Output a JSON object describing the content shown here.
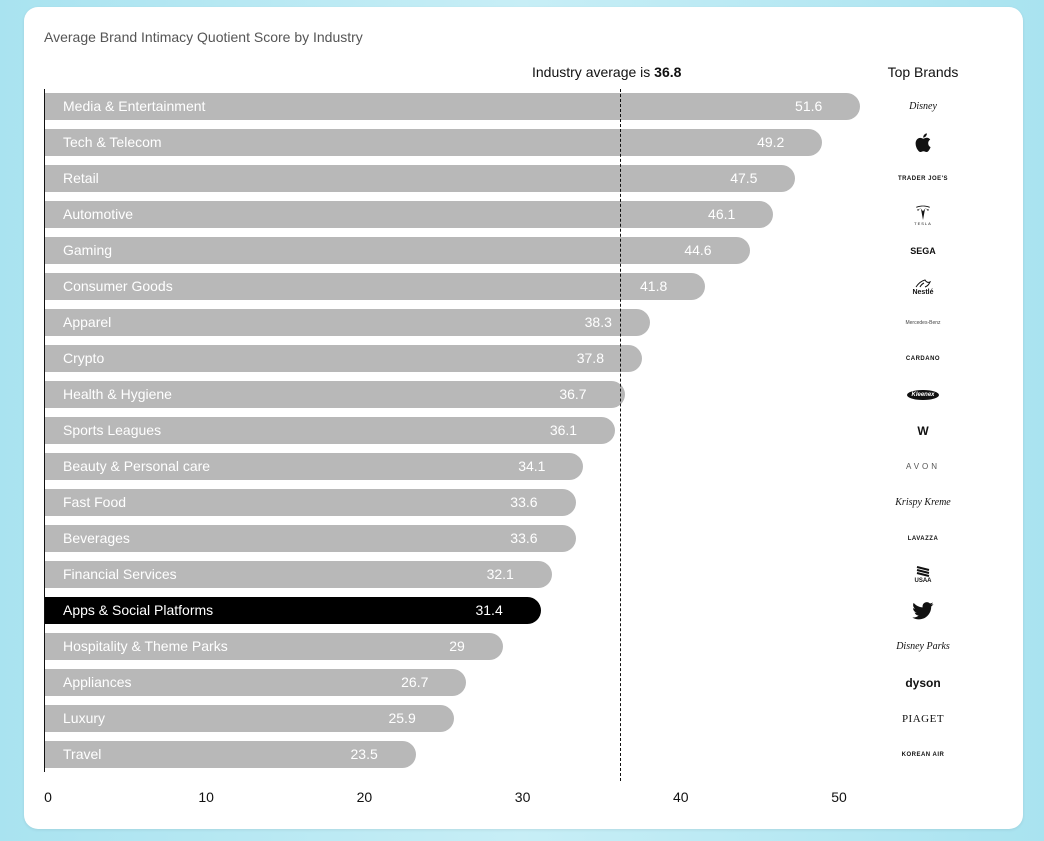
{
  "chart_data": {
    "type": "bar",
    "orientation": "horizontal",
    "title": "Average Brand Intimacy Quotient Score by Industry",
    "reference_line": {
      "prefix": "Industry average is ",
      "value": "36.8"
    },
    "brands_header": "Top Brands",
    "xlim": [
      0,
      50
    ],
    "x_ticks": [
      "0",
      "10",
      "20",
      "30",
      "40",
      "50"
    ],
    "highlight_category": "Apps & Social Platforms",
    "highlight_color": "#000000",
    "bar_color": "#b8b8b8",
    "categories": [
      "Media & Entertainment",
      "Tech & Telecom",
      "Retail",
      "Automotive",
      "Gaming",
      "Consumer Goods",
      "Apparel",
      "Crypto",
      "Health & Hygiene",
      "Sports Leagues",
      "Beauty & Personal care",
      "Fast Food",
      "Beverages",
      "Financial Services",
      "Apps & Social Platforms",
      "Hospitality & Theme Parks",
      "Appliances",
      "Luxury",
      "Travel"
    ],
    "values": [
      51.6,
      49.2,
      47.5,
      46.1,
      44.6,
      41.8,
      38.3,
      37.8,
      36.7,
      36.1,
      34.1,
      33.6,
      33.6,
      32.1,
      31.4,
      29,
      26.7,
      25.9,
      23.5
    ],
    "value_labels": [
      "51.6",
      "49.2",
      "47.5",
      "46.1",
      "44.6",
      "41.8",
      "38.3",
      "37.8",
      "36.7",
      "36.1",
      "34.1",
      "33.6",
      "33.6",
      "32.1",
      "31.4",
      "29",
      "26.7",
      "25.9",
      "23.5"
    ],
    "top_brands": [
      {
        "text": "Disney",
        "icon": "disney-logo",
        "style": "serif"
      },
      {
        "text": "",
        "icon": "apple-logo",
        "style": "apple"
      },
      {
        "text": "TRADER JOE'S",
        "icon": "trader-joes-logo",
        "style": "small"
      },
      {
        "text": "TESLA",
        "icon": "tesla-logo",
        "style": "tesla"
      },
      {
        "text": "SEGA",
        "icon": "sega-logo",
        "style": "blk"
      },
      {
        "text": "Nestlé",
        "icon": "nestle-logo",
        "style": "nestle"
      },
      {
        "text": "Mercedes-Benz",
        "icon": "mercedes-benz-logo",
        "style": "tiny"
      },
      {
        "text": "CARDANO",
        "icon": "cardano-logo",
        "style": "small"
      },
      {
        "text": "Kleenex",
        "icon": "kleenex-logo",
        "style": "oval"
      },
      {
        "text": "W",
        "icon": "wwe-logo",
        "style": "bold"
      },
      {
        "text": "AVON",
        "icon": "avon-logo",
        "style": "spaced"
      },
      {
        "text": "Krispy Kreme",
        "icon": "krispy-kreme-logo",
        "style": "serif"
      },
      {
        "text": "LAVAZZA",
        "icon": "lavazza-logo",
        "style": "small"
      },
      {
        "text": "USAA",
        "icon": "usaa-logo",
        "style": "usaa"
      },
      {
        "text": "",
        "icon": "twitter-logo",
        "style": "twitter"
      },
      {
        "text": "Disney Parks",
        "icon": "disney-parks-logo",
        "style": "serif"
      },
      {
        "text": "dyson",
        "icon": "dyson-logo",
        "style": "bold"
      },
      {
        "text": "PIAGET",
        "icon": "piaget-logo",
        "style": "piaget"
      },
      {
        "text": "KOREAN AIR",
        "icon": "korean-air-logo",
        "style": "small"
      }
    ]
  }
}
